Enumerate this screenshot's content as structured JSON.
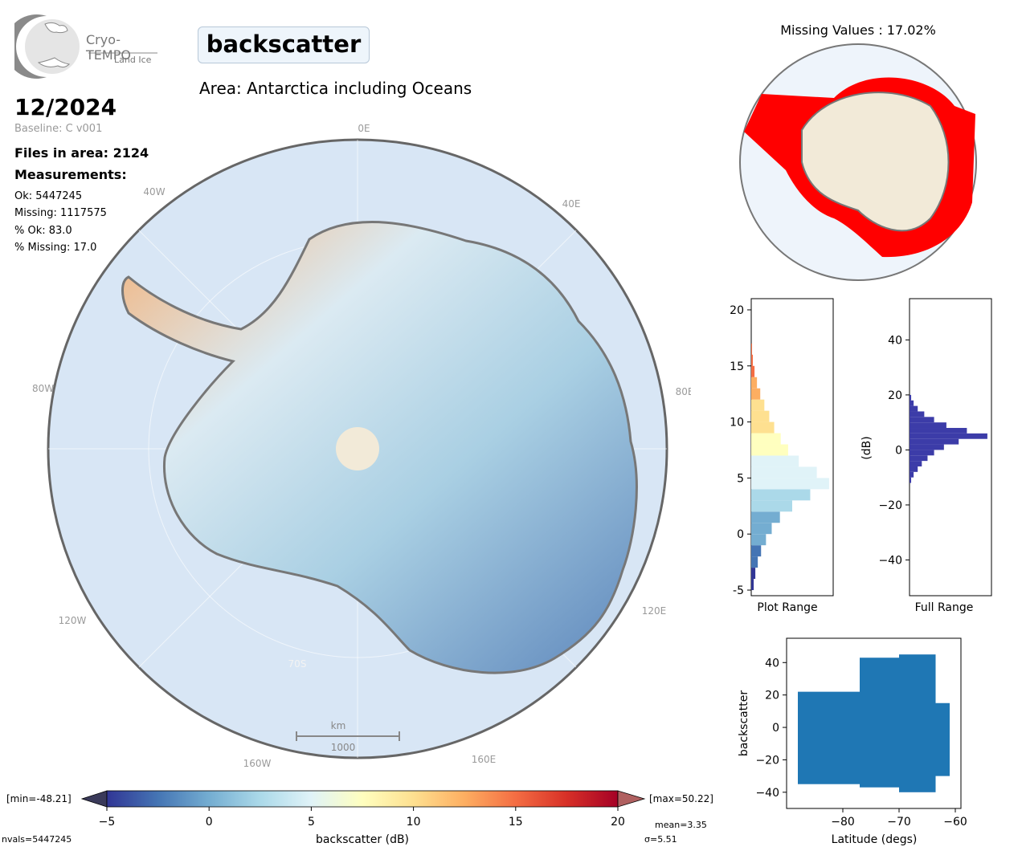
{
  "logo": {
    "name": "Cryo-TEMPO",
    "sub": "Land Ice"
  },
  "header": {
    "parameter": "backscatter",
    "area": "Area: Antarctica including Oceans",
    "date": "12/2024",
    "baseline": "Baseline: C v001",
    "files": "Files in area: 2124",
    "measurements_label": "Measurements:",
    "ok": "Ok: 5447245",
    "missing": "Missing: 1117575",
    "pct_ok": "% Ok: 83.0",
    "pct_missing": "% Missing: 17.0"
  },
  "map": {
    "lon_labels": [
      "0E",
      "40E",
      "80E",
      "120E",
      "160E",
      "160W",
      "120W",
      "80W",
      "40W"
    ],
    "lat_label": "70S",
    "scalebar_unit": "km",
    "scalebar_value": "1000"
  },
  "missing_map": {
    "title": "Missing Values : 17.02%"
  },
  "colorbar": {
    "min_label": "[min=-48.21]",
    "max_label": "[max=50.22]",
    "xlabel": "backscatter (dB)",
    "ticks": [
      "-5",
      "0",
      "5",
      "10",
      "15",
      "20"
    ],
    "mean": "mean=3.35",
    "sigma": "σ=5.51",
    "nvals": "nvals=5447245"
  },
  "chart_data": [
    {
      "type": "bar",
      "name": "plot-range-histogram",
      "xlabel": "Plot Range",
      "ylim": [
        -5.5,
        21
      ],
      "yticks": [
        -5,
        0,
        5,
        10,
        15,
        20
      ],
      "orientation": "horizontal",
      "bins": [
        -5,
        -4,
        -3,
        -2,
        -1,
        0,
        1,
        2,
        3,
        4,
        5,
        6,
        7,
        8,
        9,
        10,
        11,
        12,
        13,
        14,
        15,
        16
      ],
      "values": [
        0.03,
        0.05,
        0.08,
        0.12,
        0.18,
        0.25,
        0.35,
        0.5,
        0.72,
        0.95,
        0.8,
        0.58,
        0.45,
        0.36,
        0.28,
        0.22,
        0.16,
        0.11,
        0.07,
        0.04,
        0.02,
        0.01
      ]
    },
    {
      "type": "bar",
      "name": "full-range-histogram",
      "xlabel": "Full Range",
      "ylabel": "(dB)",
      "ylim": [
        -53,
        55
      ],
      "yticks": [
        -40,
        -20,
        0,
        20,
        40
      ],
      "orientation": "horizontal",
      "bins": [
        -12,
        -10,
        -8,
        -6,
        -4,
        -2,
        0,
        2,
        4,
        6,
        8,
        10,
        12,
        14,
        16,
        18
      ],
      "values": [
        0.02,
        0.05,
        0.1,
        0.15,
        0.22,
        0.3,
        0.42,
        0.6,
        0.95,
        0.7,
        0.45,
        0.3,
        0.18,
        0.1,
        0.05,
        0.02
      ]
    },
    {
      "type": "scatter",
      "name": "latitude-scatter",
      "xlabel": "Latitude (degs)",
      "ylabel": "backscatter",
      "xlim": [
        -90,
        -59
      ],
      "ylim": [
        -50,
        55
      ],
      "xticks": [
        -80,
        -70,
        -60
      ],
      "yticks": [
        -40,
        -20,
        0,
        20,
        40
      ]
    }
  ]
}
